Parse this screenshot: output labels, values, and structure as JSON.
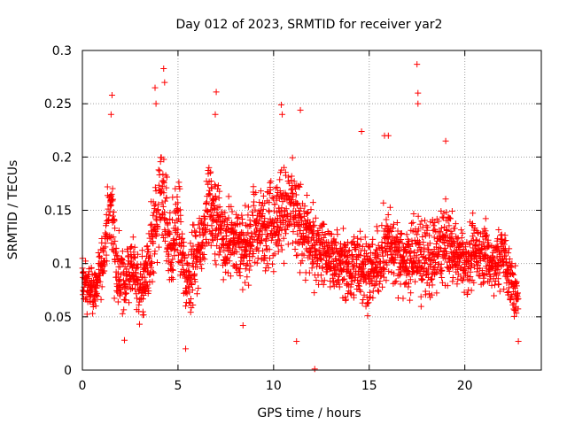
{
  "chart_data": {
    "type": "scatter",
    "title": "Day 012 of 2023, SRMTID for receiver yar2",
    "xlabel": "GPS time / hours",
    "ylabel": "SRMTID / TECUs",
    "xlim": [
      0,
      24
    ],
    "ylim": [
      0,
      0.3
    ],
    "xticks": [
      0,
      5,
      10,
      15,
      20
    ],
    "xtick_labels": [
      "0",
      "5",
      "10",
      "15",
      "20"
    ],
    "yticks": [
      0,
      0.05,
      0.1,
      0.15,
      0.2,
      0.25,
      0.3
    ],
    "ytick_labels": [
      "0",
      "0.05",
      "0.1",
      "0.15",
      "0.2",
      "0.25",
      "0.3"
    ],
    "grid": true,
    "marker": "+",
    "color": "#ff0000",
    "series": [
      {
        "name": "SRMTID",
        "trend": [
          [
            0.0,
            0.085,
            0.02
          ],
          [
            0.4,
            0.075,
            0.02
          ],
          [
            0.8,
            0.08,
            0.02
          ],
          [
            1.2,
            0.12,
            0.03
          ],
          [
            1.5,
            0.16,
            0.04
          ],
          [
            1.8,
            0.09,
            0.03
          ],
          [
            2.2,
            0.08,
            0.03
          ],
          [
            2.6,
            0.1,
            0.03
          ],
          [
            3.0,
            0.075,
            0.03
          ],
          [
            3.4,
            0.09,
            0.03
          ],
          [
            3.8,
            0.13,
            0.05
          ],
          [
            4.2,
            0.17,
            0.05
          ],
          [
            4.6,
            0.11,
            0.04
          ],
          [
            5.0,
            0.14,
            0.04
          ],
          [
            5.4,
            0.08,
            0.03
          ],
          [
            5.8,
            0.1,
            0.03
          ],
          [
            6.2,
            0.12,
            0.03
          ],
          [
            6.6,
            0.16,
            0.04
          ],
          [
            7.0,
            0.14,
            0.04
          ],
          [
            7.5,
            0.12,
            0.03
          ],
          [
            8.0,
            0.125,
            0.035
          ],
          [
            8.5,
            0.11,
            0.03
          ],
          [
            9.0,
            0.13,
            0.035
          ],
          [
            9.5,
            0.135,
            0.035
          ],
          [
            10.0,
            0.14,
            0.04
          ],
          [
            10.5,
            0.15,
            0.04
          ],
          [
            11.0,
            0.15,
            0.04
          ],
          [
            11.5,
            0.13,
            0.035
          ],
          [
            12.0,
            0.12,
            0.035
          ],
          [
            12.5,
            0.115,
            0.03
          ],
          [
            13.0,
            0.105,
            0.03
          ],
          [
            13.5,
            0.1,
            0.03
          ],
          [
            14.0,
            0.095,
            0.03
          ],
          [
            14.5,
            0.1,
            0.03
          ],
          [
            15.0,
            0.09,
            0.03
          ],
          [
            15.5,
            0.1,
            0.03
          ],
          [
            16.0,
            0.12,
            0.035
          ],
          [
            16.5,
            0.11,
            0.03
          ],
          [
            17.0,
            0.1,
            0.03
          ],
          [
            17.5,
            0.11,
            0.04
          ],
          [
            18.0,
            0.1,
            0.035
          ],
          [
            18.5,
            0.11,
            0.035
          ],
          [
            19.0,
            0.12,
            0.035
          ],
          [
            19.5,
            0.11,
            0.03
          ],
          [
            20.0,
            0.1,
            0.03
          ],
          [
            20.5,
            0.11,
            0.03
          ],
          [
            21.0,
            0.11,
            0.03
          ],
          [
            21.5,
            0.1,
            0.03
          ],
          [
            22.0,
            0.11,
            0.03
          ],
          [
            22.5,
            0.08,
            0.025
          ],
          [
            22.8,
            0.06,
            0.02
          ]
        ],
        "peaks": [
          [
            1.55,
            0.258
          ],
          [
            1.5,
            0.24
          ],
          [
            4.25,
            0.283
          ],
          [
            4.3,
            0.27
          ],
          [
            3.8,
            0.265
          ],
          [
            3.85,
            0.25
          ],
          [
            7.0,
            0.261
          ],
          [
            6.95,
            0.24
          ],
          [
            10.4,
            0.249
          ],
          [
            10.45,
            0.24
          ],
          [
            11.4,
            0.244
          ],
          [
            17.5,
            0.287
          ],
          [
            17.55,
            0.26
          ],
          [
            17.55,
            0.25
          ],
          [
            15.8,
            0.22
          ],
          [
            16.0,
            0.22
          ],
          [
            14.6,
            0.224
          ],
          [
            19.0,
            0.215
          ],
          [
            12.15,
            0.001
          ],
          [
            11.2,
            0.027
          ],
          [
            22.8,
            0.027
          ],
          [
            2.2,
            0.028
          ],
          [
            5.4,
            0.02
          ],
          [
            8.4,
            0.042
          ]
        ]
      }
    ]
  }
}
